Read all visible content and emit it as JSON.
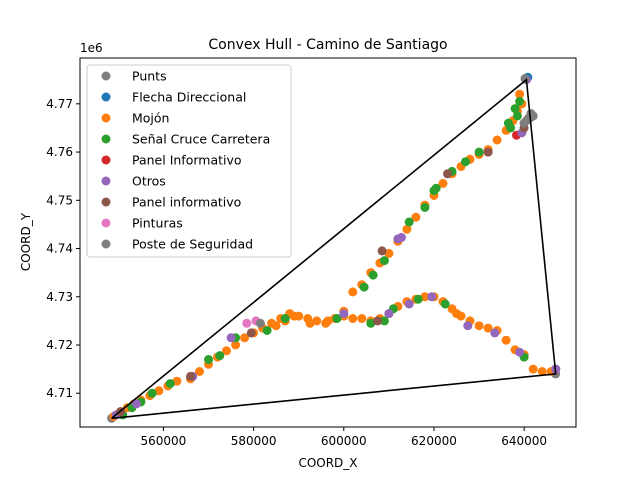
{
  "chart_data": {
    "type": "scatter",
    "title": "Convex Hull - Camino de Santiago",
    "xlabel": "COORD_X",
    "ylabel": "COORD_Y",
    "y_offset_label": "1e6",
    "xlim": [
      541500,
      651500
    ],
    "ylim": [
      4703000,
      4779500
    ],
    "y_scale": 1000000,
    "x_ticks": [
      560000,
      580000,
      600000,
      620000,
      640000
    ],
    "x_tick_labels": [
      "560000",
      "580000",
      "600000",
      "620000",
      "640000"
    ],
    "y_ticks": [
      4710000,
      4720000,
      4730000,
      4740000,
      4750000,
      4760000,
      4770000
    ],
    "y_tick_labels": [
      "4.71",
      "4.72",
      "4.73",
      "4.74",
      "4.75",
      "4.76",
      "4.77"
    ],
    "legend_position": "upper-left",
    "hull": [
      [
        548500,
        4704800
      ],
      [
        640500,
        4775000
      ],
      [
        647000,
        4714000
      ],
      [
        548500,
        4704800
      ]
    ],
    "series": [
      {
        "name": "Punts",
        "color": "#7f7f7f",
        "points": [
          [
            548500,
            4704800
          ],
          [
            640300,
            4775300
          ],
          [
            647000,
            4714000
          ]
        ]
      },
      {
        "name": "Flecha Direccional",
        "color": "#1f77b4",
        "points": [
          [
            640800,
            4775500
          ],
          [
            647000,
            4715000
          ]
        ]
      },
      {
        "name": "Mojón",
        "color": "#ff7f0e",
        "points": [
          [
            549000,
            4705200
          ],
          [
            550500,
            4706200
          ],
          [
            552000,
            4707000
          ],
          [
            553500,
            4707800
          ],
          [
            555000,
            4708600
          ],
          [
            557000,
            4709500
          ],
          [
            559000,
            4710500
          ],
          [
            561000,
            4711500
          ],
          [
            563000,
            4712500
          ],
          [
            566000,
            4713000
          ],
          [
            568000,
            4714500
          ],
          [
            570000,
            4716000
          ],
          [
            572000,
            4717500
          ],
          [
            574000,
            4718800
          ],
          [
            576000,
            4720000
          ],
          [
            578000,
            4721500
          ],
          [
            580000,
            4722500
          ],
          [
            582000,
            4723500
          ],
          [
            584000,
            4724500
          ],
          [
            586000,
            4725500
          ],
          [
            588000,
            4726500
          ],
          [
            590000,
            4726000
          ],
          [
            592000,
            4725500
          ],
          [
            594000,
            4725000
          ],
          [
            596000,
            4724500
          ],
          [
            598000,
            4725500
          ],
          [
            600000,
            4726000
          ],
          [
            602000,
            4725500
          ],
          [
            604000,
            4725500
          ],
          [
            606000,
            4725000
          ],
          [
            608000,
            4725500
          ],
          [
            610000,
            4726500
          ],
          [
            612000,
            4728000
          ],
          [
            614000,
            4729000
          ],
          [
            616000,
            4729500
          ],
          [
            618000,
            4730000
          ],
          [
            620000,
            4730000
          ],
          [
            622000,
            4729000
          ],
          [
            624000,
            4727500
          ],
          [
            626000,
            4726000
          ],
          [
            628000,
            4725000
          ],
          [
            630000,
            4724000
          ],
          [
            632000,
            4723500
          ],
          [
            634000,
            4723000
          ],
          [
            636000,
            4721000
          ],
          [
            638000,
            4719000
          ],
          [
            640000,
            4718000
          ],
          [
            642000,
            4715000
          ],
          [
            644000,
            4714500
          ],
          [
            646000,
            4714500
          ],
          [
            647000,
            4715000
          ],
          [
            600000,
            4727000
          ],
          [
            602000,
            4731000
          ],
          [
            604000,
            4732500
          ],
          [
            606000,
            4735000
          ],
          [
            608000,
            4737000
          ],
          [
            610000,
            4739000
          ],
          [
            612000,
            4741500
          ],
          [
            614000,
            4744000
          ],
          [
            616000,
            4746500
          ],
          [
            618000,
            4749000
          ],
          [
            620000,
            4751000
          ],
          [
            622000,
            4753500
          ],
          [
            624000,
            4755500
          ],
          [
            626000,
            4757000
          ],
          [
            628000,
            4758500
          ],
          [
            630000,
            4759500
          ],
          [
            632000,
            4760500
          ],
          [
            634000,
            4762500
          ],
          [
            636000,
            4764500
          ],
          [
            637500,
            4766500
          ],
          [
            638500,
            4768500
          ],
          [
            639500,
            4770000
          ],
          [
            639000,
            4772000
          ],
          [
            585000,
            4724000
          ],
          [
            587000,
            4725000
          ],
          [
            589000,
            4726000
          ],
          [
            596500,
            4725000
          ],
          [
            592500,
            4724500
          ],
          [
            625000,
            4726500
          ]
        ]
      },
      {
        "name": "Señal Cruce Carretera",
        "color": "#2ca02c",
        "points": [
          [
            551000,
            4705500
          ],
          [
            553000,
            4707000
          ],
          [
            555000,
            4708200
          ],
          [
            557500,
            4710000
          ],
          [
            561500,
            4712000
          ],
          [
            570000,
            4717000
          ],
          [
            572500,
            4717800
          ],
          [
            576000,
            4721500
          ],
          [
            583000,
            4723000
          ],
          [
            587000,
            4725500
          ],
          [
            598500,
            4725500
          ],
          [
            606000,
            4724500
          ],
          [
            609000,
            4725000
          ],
          [
            611000,
            4727500
          ],
          [
            616500,
            4729500
          ],
          [
            622500,
            4728500
          ],
          [
            604500,
            4732000
          ],
          [
            606500,
            4734500
          ],
          [
            609000,
            4737500
          ],
          [
            614500,
            4745500
          ],
          [
            618000,
            4748500
          ],
          [
            620000,
            4752000
          ],
          [
            624000,
            4756000
          ],
          [
            630000,
            4760000
          ],
          [
            636500,
            4766000
          ],
          [
            638000,
            4769000
          ],
          [
            639000,
            4770500
          ],
          [
            638500,
            4767500
          ],
          [
            637000,
            4765000
          ],
          [
            640000,
            4717500
          ],
          [
            620500,
            4752500
          ],
          [
            627000,
            4758000
          ]
        ]
      },
      {
        "name": "Panel Informativo",
        "color": "#d62728",
        "points": [
          [
            638300,
            4763500
          ]
        ]
      },
      {
        "name": "Otros",
        "color": "#9467bd",
        "points": [
          [
            549500,
            4705500
          ],
          [
            554000,
            4707800
          ],
          [
            575000,
            4721500
          ],
          [
            600000,
            4726500
          ],
          [
            610000,
            4726500
          ],
          [
            614500,
            4728500
          ],
          [
            619500,
            4730000
          ],
          [
            627500,
            4724000
          ],
          [
            633500,
            4722500
          ],
          [
            639000,
            4718500
          ],
          [
            647000,
            4715000
          ],
          [
            612000,
            4742000
          ],
          [
            612800,
            4742300
          ],
          [
            640500,
            4775000
          ],
          [
            639500,
            4764000
          ],
          [
            566500,
            4713500
          ]
        ]
      },
      {
        "name": "Panel informativo",
        "color": "#8c564b",
        "points": [
          [
            550500,
            4706200
          ],
          [
            566000,
            4713500
          ],
          [
            579500,
            4722500
          ],
          [
            607500,
            4725000
          ],
          [
            608500,
            4739500
          ],
          [
            623000,
            4755500
          ],
          [
            632000,
            4760000
          ],
          [
            640000,
            4765000
          ],
          [
            641000,
            4767000
          ]
        ]
      },
      {
        "name": "Pinturas",
        "color": "#e377c2",
        "points": [
          [
            578500,
            4724500
          ],
          [
            580500,
            4725000
          ]
        ]
      },
      {
        "name": "Poste de Seguridad",
        "color": "#7f7f7f",
        "points": [
          [
            640000,
            4766000
          ],
          [
            640500,
            4766500
          ],
          [
            641000,
            4766800
          ],
          [
            641500,
            4767200
          ],
          [
            642000,
            4767500
          ],
          [
            641500,
            4768000
          ],
          [
            581500,
            4724500
          ],
          [
            640200,
            4775200
          ]
        ]
      }
    ]
  }
}
